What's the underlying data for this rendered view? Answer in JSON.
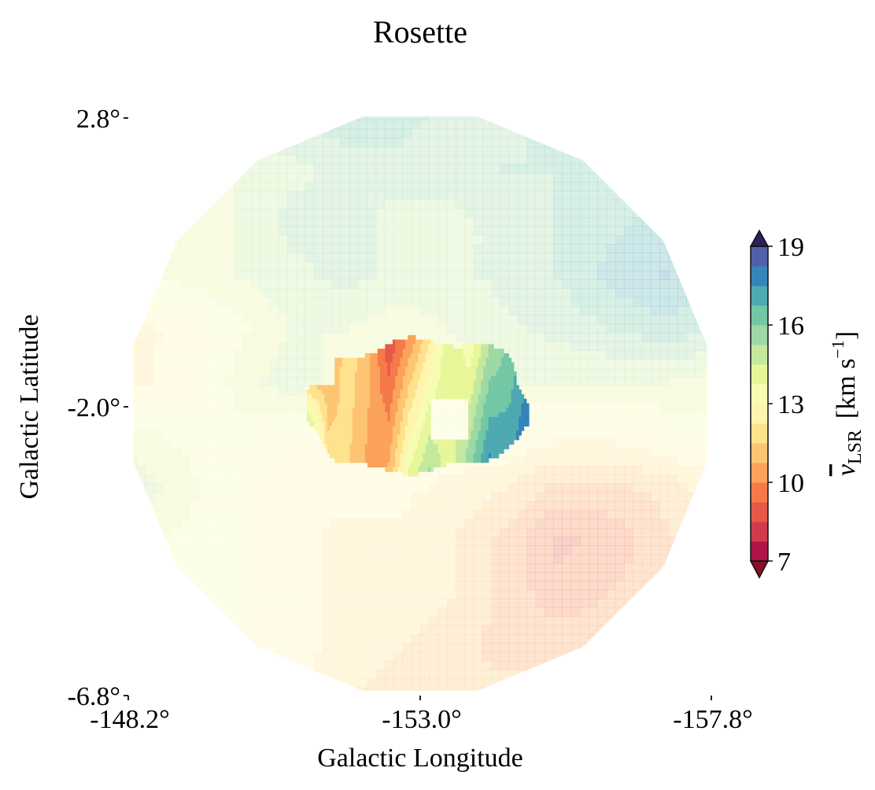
{
  "chart_data": {
    "type": "heatmap",
    "title": "Rosette",
    "xlabel": "Galactic Longitude",
    "ylabel": "Galactic Latitude",
    "xlim": [
      -148.2,
      -157.8
    ],
    "ylim": [
      -6.8,
      2.8
    ],
    "x_ticks": [
      "-148.2°",
      "-153.0°",
      "-157.8°"
    ],
    "y_ticks": [
      "2.8°",
      "-2.0°",
      "-6.8°"
    ],
    "colorbar": {
      "label_main": "v",
      "label_sub": "LSR",
      "label_unit": "[km s",
      "label_exp": "−1",
      "label_close": "]",
      "ticks": [
        "7",
        "10",
        "13",
        "16",
        "19"
      ],
      "range": [
        7,
        19
      ],
      "extend": "both",
      "colormap": "Spectral",
      "levels": 16
    },
    "background_velocity": {
      "description_free_values_grid_rows": [
        [
          14.0,
          14.5,
          15.5,
          16.0,
          16.5,
          16.5,
          15.5,
          15.5,
          16.5,
          17.0,
          15.0,
          14.0
        ],
        [
          13.5,
          14.0,
          14.5,
          15.0,
          15.5,
          15.5,
          15.5,
          16.0,
          16.0,
          16.5,
          16.0,
          15.5
        ],
        [
          13.5,
          14.0,
          14.5,
          15.5,
          15.5,
          15.0,
          15.0,
          15.5,
          16.0,
          16.5,
          17.0,
          16.5
        ],
        [
          14.0,
          14.0,
          14.5,
          15.0,
          15.5,
          15.0,
          15.0,
          15.5,
          16.0,
          17.0,
          17.5,
          17.0
        ],
        [
          12.0,
          12.5,
          13.5,
          14.5,
          14.5,
          14.0,
          14.5,
          15.0,
          15.5,
          16.0,
          16.5,
          16.0
        ],
        [
          12.0,
          12.5,
          14.0,
          15.0,
          14.0,
          14.0,
          14.0,
          14.5,
          14.5,
          14.5,
          14.5,
          14.0
        ],
        [
          14.0,
          13.5,
          13.5,
          13.0,
          13.0,
          13.0,
          13.0,
          13.0,
          12.5,
          12.5,
          13.0,
          13.5
        ],
        [
          15.0,
          14.0,
          13.0,
          12.5,
          12.5,
          12.5,
          12.0,
          11.5,
          10.5,
          10.5,
          11.0,
          12.0
        ],
        [
          14.0,
          13.5,
          13.0,
          12.5,
          12.0,
          12.0,
          11.5,
          10.5,
          9.0,
          9.5,
          10.5,
          11.5
        ],
        [
          13.5,
          13.0,
          13.0,
          12.5,
          12.0,
          12.0,
          11.5,
          10.5,
          9.5,
          10.0,
          10.5,
          11.0
        ],
        [
          13.5,
          13.5,
          13.0,
          12.5,
          12.0,
          11.5,
          11.0,
          10.5,
          10.5,
          10.5,
          10.5,
          11.0
        ],
        [
          13.0,
          13.0,
          12.5,
          12.5,
          11.5,
          11.0,
          11.0,
          11.0,
          11.0,
          11.0,
          11.0,
          11.0
        ]
      ]
    },
    "central_region_velocity": [
      [
        7.5,
        10.5,
        12.0,
        11.0,
        8.5,
        10.0,
        12.0,
        14.5,
        13.0,
        15.0,
        16.0,
        17.0
      ],
      [
        19.0,
        12.0,
        11.5,
        10.5,
        11.0,
        14.0,
        15.5,
        14.0,
        16.0,
        18.0,
        17.5,
        19.0
      ]
    ]
  }
}
